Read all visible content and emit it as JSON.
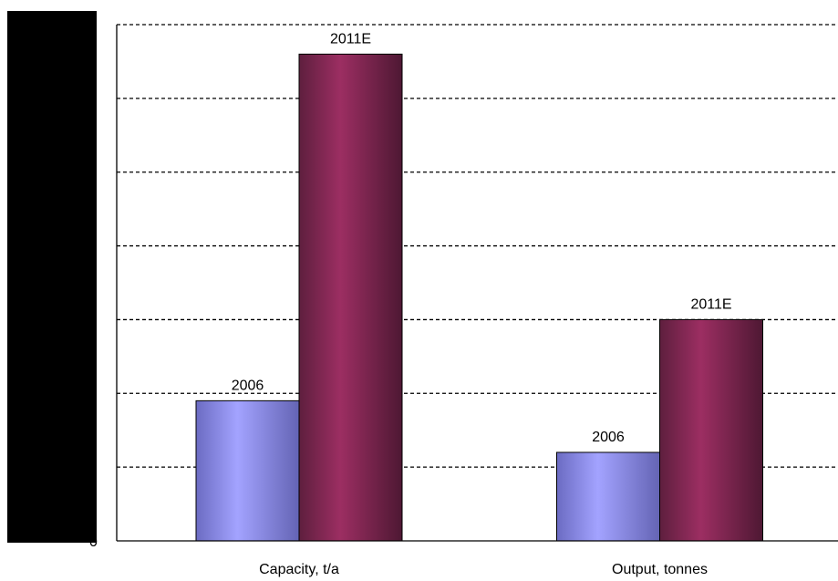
{
  "chart_data": {
    "type": "bar",
    "categories": [
      "Capacity, t/a",
      "Output, tonnes"
    ],
    "series": [
      {
        "name": "2006",
        "values": [
          1.9,
          1.2
        ],
        "color": "#9999ff"
      },
      {
        "name": "2011E",
        "values": [
          6.6,
          3.0
        ],
        "color": "#993366"
      }
    ],
    "ylim": [
      0,
      7
    ],
    "grid": true,
    "legend": "none",
    "data_labels": true,
    "note": "y-axis tick labels are hidden behind a solid black bar; values shown in relative units (one unit per gridline)"
  }
}
